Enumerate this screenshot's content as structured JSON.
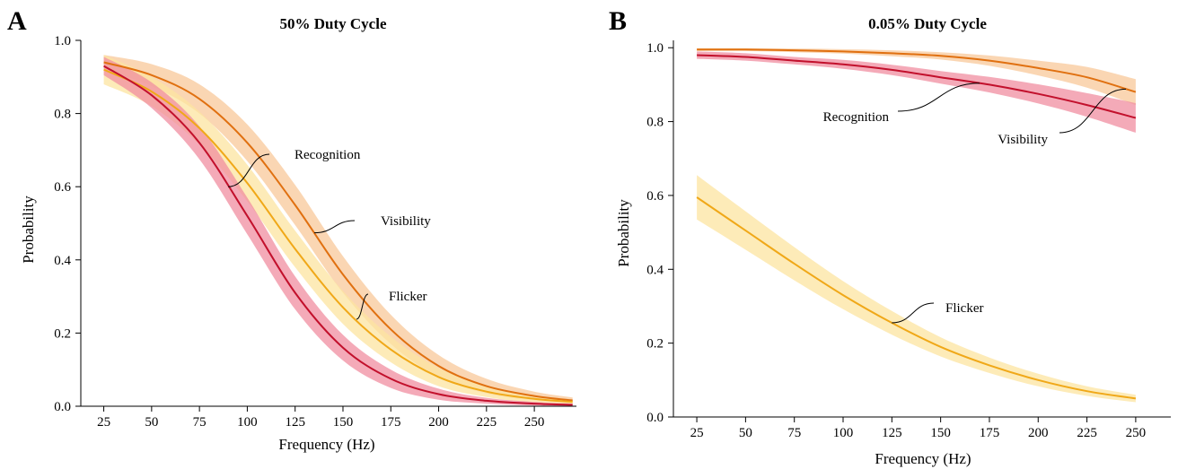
{
  "colors": {
    "recognition_line": "#c2102c",
    "recognition_band": "#f08ea0",
    "visibility_line": "#e07010",
    "visibility_band": "#f8c89a",
    "flicker_line": "#f0a818",
    "flicker_band": "#fce4a0"
  },
  "chart_data": [
    {
      "type": "line",
      "panel_label": "A",
      "title": "50% Duty Cycle",
      "xlabel": "Frequency (Hz)",
      "ylabel": "Probability",
      "xlim": [
        13,
        272
      ],
      "ylim": [
        0,
        1
      ],
      "x_ticks": [
        25,
        50,
        75,
        100,
        125,
        150,
        175,
        200,
        225,
        250
      ],
      "y_ticks": [
        0.0,
        0.2,
        0.4,
        0.6,
        0.8,
        1.0
      ],
      "y_tick_labels": [
        "0.0",
        "0.2",
        "0.4",
        "0.6",
        "0.8",
        "1.0"
      ],
      "grid": false,
      "series": [
        {
          "name": "Visibility",
          "x": [
            25,
            50,
            75,
            100,
            125,
            150,
            175,
            200,
            225,
            250,
            270
          ],
          "y": [
            0.94,
            0.905,
            0.84,
            0.72,
            0.55,
            0.36,
            0.21,
            0.11,
            0.055,
            0.028,
            0.016
          ],
          "ci": [
            0.02,
            0.03,
            0.04,
            0.05,
            0.055,
            0.05,
            0.04,
            0.03,
            0.02,
            0.012,
            0.008
          ]
        },
        {
          "name": "Flicker",
          "x": [
            25,
            50,
            75,
            100,
            125,
            150,
            175,
            200,
            225,
            250,
            270
          ],
          "y": [
            0.92,
            0.86,
            0.76,
            0.61,
            0.43,
            0.27,
            0.155,
            0.08,
            0.04,
            0.02,
            0.012
          ],
          "ci": [
            0.04,
            0.04,
            0.045,
            0.05,
            0.05,
            0.045,
            0.035,
            0.025,
            0.015,
            0.01,
            0.006
          ]
        },
        {
          "name": "Recognition",
          "x": [
            25,
            50,
            75,
            100,
            125,
            150,
            175,
            200,
            225,
            250,
            270
          ],
          "y": [
            0.93,
            0.85,
            0.72,
            0.52,
            0.31,
            0.16,
            0.075,
            0.033,
            0.015,
            0.007,
            0.004
          ],
          "ci": [
            0.025,
            0.035,
            0.045,
            0.05,
            0.045,
            0.035,
            0.025,
            0.015,
            0.008,
            0.005,
            0.003
          ]
        }
      ],
      "annotations": [
        {
          "text": "Recognition",
          "series": "Recognition",
          "at_x": 90
        },
        {
          "text": "Visibility",
          "series": "Visibility",
          "at_x": 135
        },
        {
          "text": "Flicker",
          "series": "Flicker",
          "at_x": 157
        }
      ]
    },
    {
      "type": "line",
      "panel_label": "B",
      "title": "0.05% Duty Cycle",
      "xlabel": "Frequency (Hz)",
      "ylabel": "Probability",
      "xlim": [
        13,
        268
      ],
      "ylim": [
        0,
        1.02
      ],
      "x_ticks": [
        25,
        50,
        75,
        100,
        125,
        150,
        175,
        200,
        225,
        250
      ],
      "y_ticks": [
        0.0,
        0.2,
        0.4,
        0.6,
        0.8,
        1.0
      ],
      "y_tick_labels": [
        "0.0",
        "0.2",
        "0.4",
        "0.6",
        "0.8",
        "1.0"
      ],
      "grid": false,
      "series": [
        {
          "name": "Visibility",
          "x": [
            25,
            50,
            75,
            100,
            125,
            150,
            175,
            200,
            225,
            250
          ],
          "y": [
            0.995,
            0.995,
            0.993,
            0.99,
            0.985,
            0.978,
            0.965,
            0.945,
            0.92,
            0.88
          ],
          "ci": [
            0.004,
            0.004,
            0.005,
            0.006,
            0.008,
            0.01,
            0.014,
            0.02,
            0.028,
            0.035
          ]
        },
        {
          "name": "Recognition",
          "x": [
            25,
            50,
            75,
            100,
            125,
            150,
            175,
            200,
            225,
            250
          ],
          "y": [
            0.98,
            0.975,
            0.965,
            0.955,
            0.94,
            0.92,
            0.9,
            0.875,
            0.845,
            0.81
          ],
          "ci": [
            0.01,
            0.01,
            0.01,
            0.012,
            0.014,
            0.017,
            0.021,
            0.026,
            0.032,
            0.04
          ]
        },
        {
          "name": "Flicker",
          "x": [
            25,
            50,
            75,
            100,
            125,
            150,
            175,
            200,
            225,
            250
          ],
          "y": [
            0.595,
            0.505,
            0.415,
            0.33,
            0.255,
            0.19,
            0.14,
            0.1,
            0.07,
            0.05
          ],
          "ci": [
            0.06,
            0.052,
            0.045,
            0.038,
            0.032,
            0.026,
            0.021,
            0.017,
            0.013,
            0.01
          ]
        }
      ],
      "annotations": [
        {
          "text": "Recognition",
          "series": "Recognition",
          "at_x": 170
        },
        {
          "text": "Visibility",
          "series": "Visibility",
          "at_x": 245
        },
        {
          "text": "Flicker",
          "series": "Flicker",
          "at_x": 125
        }
      ]
    }
  ]
}
